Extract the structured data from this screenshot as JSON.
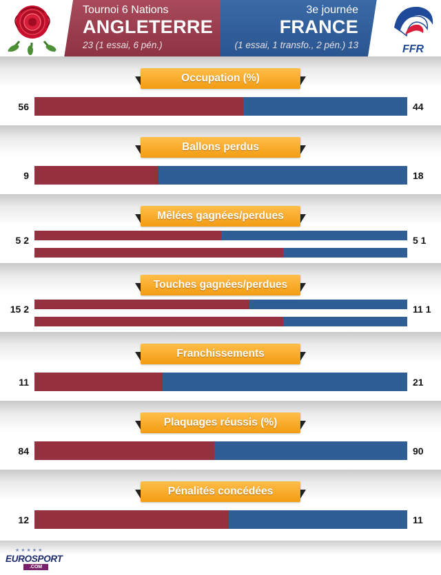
{
  "header": {
    "competition": "Tournoi 6 Nations",
    "round": "3e journée",
    "home": {
      "team": "ANGLETERRE",
      "score_line": "23 (1 essai, 6 pén.)"
    },
    "away": {
      "team": "FRANCE",
      "score_line": "(1 essai, 1 transfo., 2 pén.) 13",
      "logo_text": "FFR"
    }
  },
  "colors": {
    "home": "#95313f",
    "away": "#2f5d95",
    "banner": "#f39c12"
  },
  "chart_data": {
    "type": "bar",
    "orientation": "horizontal-stacked-100",
    "series": [
      {
        "name": "ANGLETERRE"
      },
      {
        "name": "FRANCE"
      }
    ],
    "stats": [
      {
        "label": "Occupation (%)",
        "home_text": "56",
        "away_text": "44",
        "bars": [
          {
            "home": 56,
            "away": 44
          }
        ]
      },
      {
        "label": "Ballons perdus",
        "home_text": "9",
        "away_text": "18",
        "bars": [
          {
            "home": 9,
            "away": 18
          }
        ]
      },
      {
        "label": "Mêlées gagnées/perdues",
        "home_text": "5 2",
        "away_text": "5 1",
        "bars": [
          {
            "home": 5,
            "away": 5
          },
          {
            "home": 2,
            "away": 1
          }
        ]
      },
      {
        "label": "Touches gagnées/perdues",
        "home_text": "15 2",
        "away_text": "11 1",
        "bars": [
          {
            "home": 15,
            "away": 11
          },
          {
            "home": 2,
            "away": 1
          }
        ]
      },
      {
        "label": "Franchissements",
        "home_text": "11",
        "away_text": "21",
        "bars": [
          {
            "home": 11,
            "away": 21
          }
        ]
      },
      {
        "label": "Plaquages réussis (%)",
        "home_text": "84",
        "away_text": "90",
        "bars": [
          {
            "home": 84,
            "away": 90
          }
        ]
      },
      {
        "label": "Pénalités concédées",
        "home_text": "12",
        "away_text": "11",
        "bars": [
          {
            "home": 12,
            "away": 11
          }
        ]
      }
    ]
  },
  "footer": {
    "brand": "EUROSPORT",
    "brand_sub": ".COM"
  }
}
